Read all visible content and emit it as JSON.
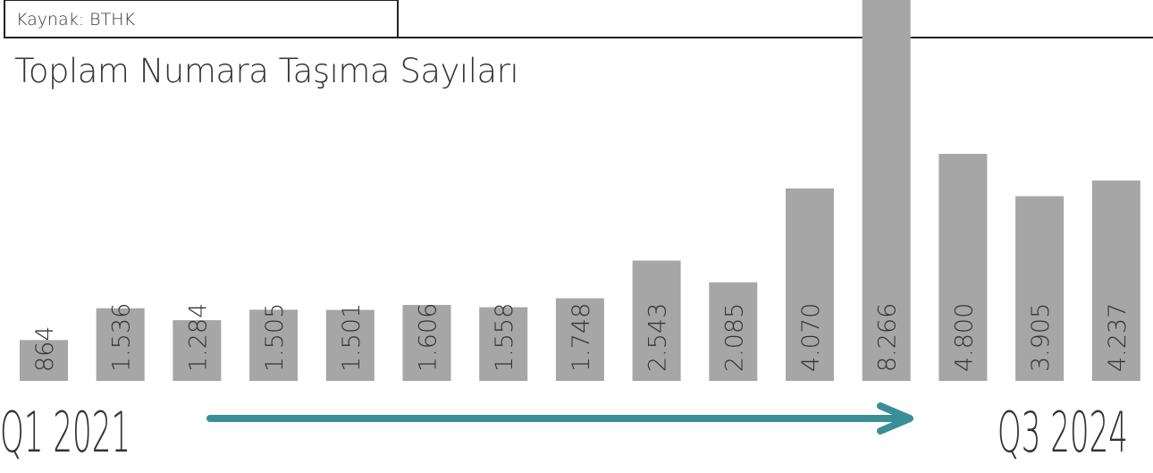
{
  "chart_data": {
    "type": "bar",
    "source": "Kaynak: BTHK",
    "title": "Toplam Numara Taşıma Sayıları",
    "categories": [
      "Q1 2021",
      null,
      null,
      null,
      null,
      null,
      null,
      null,
      null,
      null,
      null,
      null,
      null,
      null,
      "Q3 2024"
    ],
    "values": [
      864,
      1536,
      1284,
      1505,
      1501,
      1606,
      1558,
      1748,
      2543,
      2085,
      4070,
      8266,
      4800,
      3905,
      4237
    ],
    "value_labels": [
      "864",
      "1.536",
      "1.284",
      "1.505",
      "1.501",
      "1.606",
      "1.558",
      "1.748",
      "2.543",
      "2.085",
      "4.070",
      "8.266",
      "4.800",
      "3.905",
      "4.237"
    ],
    "color": "#a6a6a6",
    "arrow_color": "#3a8f96"
  }
}
